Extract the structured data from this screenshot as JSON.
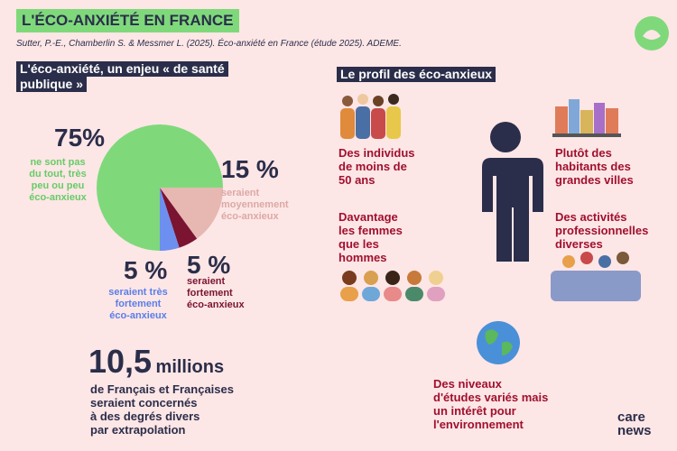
{
  "header": {
    "title": "L'ÉCO-ANXIÉTÉ EN FRANCE",
    "citation": "Sutter, P.-E., Chamberlin S. & Messmer L. (2025). Éco-anxiété en France (étude 2025). ADEME."
  },
  "left": {
    "heading": [
      "L'éco-anxiété, un enjeu « de santé",
      "publique  »"
    ]
  },
  "chart_data": {
    "type": "pie",
    "values": [
      75,
      15,
      5,
      5
    ],
    "value_labels": [
      "75%",
      "15 %",
      "5 %",
      "5 %"
    ],
    "slice_labels": [
      [
        "ne sont pas",
        "du tout, très",
        "peu ou peu",
        "éco-anxieux"
      ],
      [
        "seraient",
        "moyennement",
        "éco-anxieux"
      ],
      [
        "seraient très",
        "fortement",
        "éco-anxieux"
      ],
      [
        "seraient",
        "fortement",
        "éco-anxieux"
      ]
    ],
    "colors": [
      "#7fd97b",
      "#e7b7b2",
      "#6d8ff0",
      "#7a1430"
    ]
  },
  "stat": {
    "number": "10,5",
    "unit": "millions",
    "text": [
      "de Français et Françaises",
      "seraient concernés",
      "à des degrés divers",
      "par extrapolation"
    ]
  },
  "right": {
    "heading": "Le profil des éco-anxieux",
    "items": [
      [
        "Des individus",
        "de moins de",
        "50 ans"
      ],
      [
        "Plutôt des",
        "habitants des",
        "grandes villes"
      ],
      [
        "Davantage",
        "les femmes",
        "que les",
        "hommes"
      ],
      [
        "Des activités",
        "professionnelles",
        "diverses"
      ],
      [
        "Des niveaux",
        "d'études variés mais",
        "un intérêt pour",
        "l'environnement"
      ]
    ]
  },
  "brand": [
    "care",
    "news"
  ]
}
